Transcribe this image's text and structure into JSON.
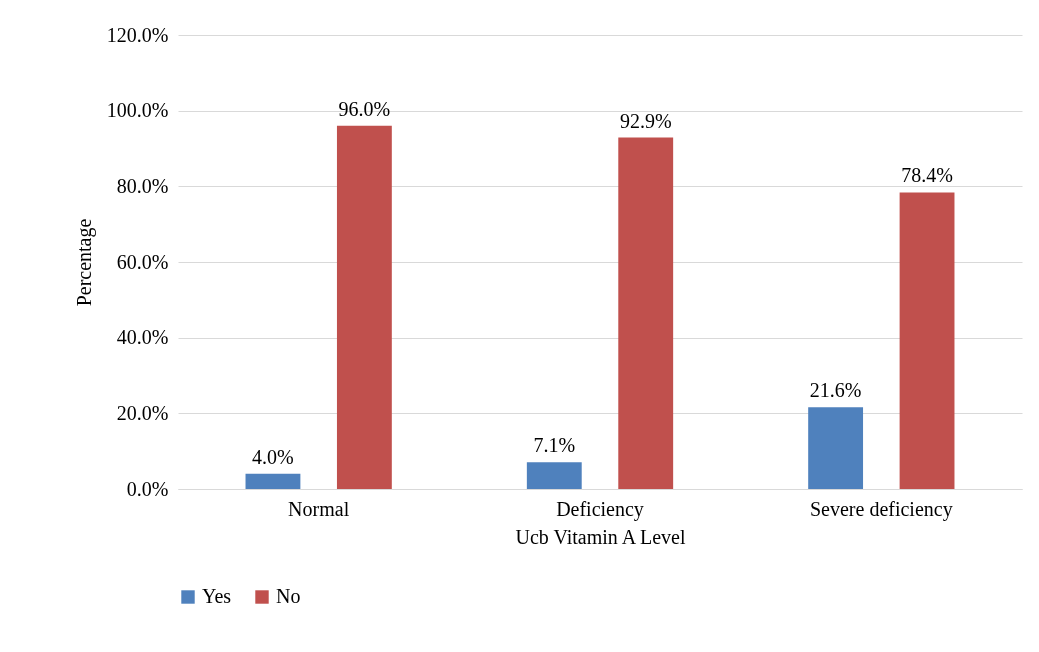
{
  "chart_data": {
    "type": "bar",
    "xlabel": "Ucb Vitamin A Level",
    "ylabel": "Percentage",
    "categories": [
      "Normal",
      "Deficiency",
      "Severe deficiency"
    ],
    "series": [
      {
        "name": "Yes",
        "color": "#4f81bd",
        "values": [
          4.0,
          7.1,
          21.6
        ],
        "value_labels": [
          "4.0%",
          "7.1%",
          "21.6%"
        ]
      },
      {
        "name": "No",
        "color": "#c0504d",
        "values": [
          96.0,
          92.9,
          78.4
        ],
        "value_labels": [
          "96.0%",
          "92.9%",
          "78.4%"
        ]
      }
    ],
    "ylim": [
      0,
      120
    ],
    "yticks": [
      {
        "value": 0,
        "label": "0.0%"
      },
      {
        "value": 20,
        "label": "20.0%"
      },
      {
        "value": 40,
        "label": "40.0%"
      },
      {
        "value": 60,
        "label": "60.0%"
      },
      {
        "value": 80,
        "label": "80.0%"
      },
      {
        "value": 100,
        "label": "100.0%"
      },
      {
        "value": 120,
        "label": "120.0%"
      }
    ],
    "grid": "y",
    "legend": "bottom"
  }
}
